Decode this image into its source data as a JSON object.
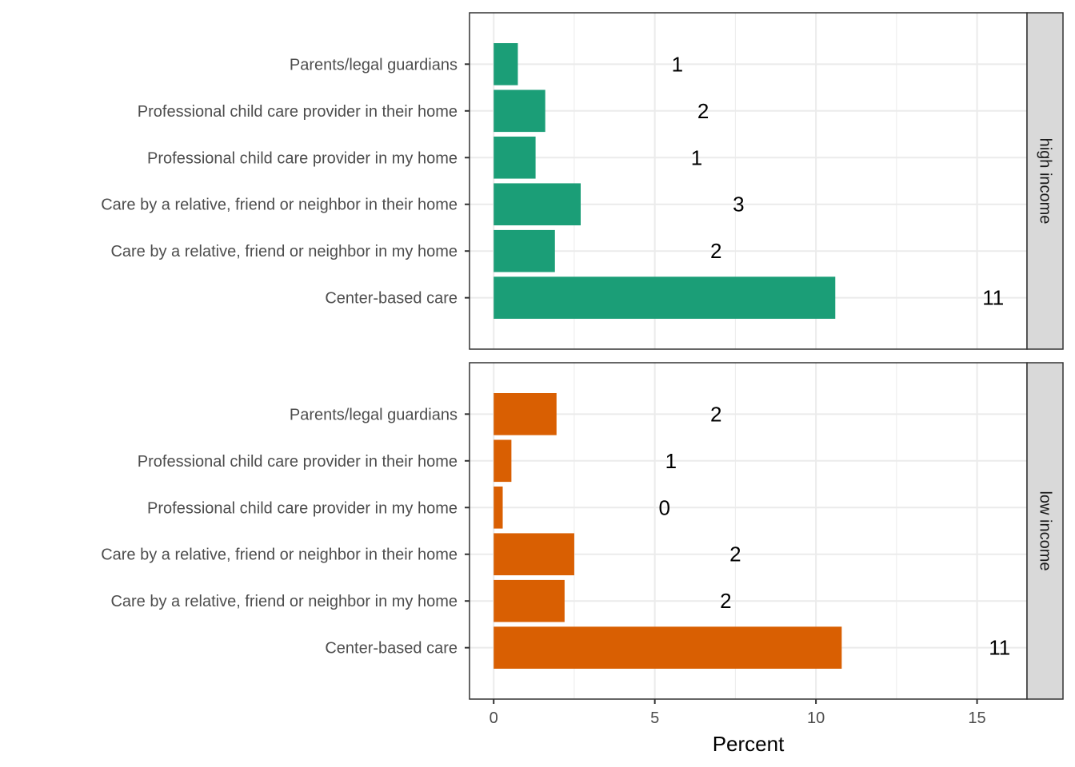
{
  "chart_data": {
    "type": "bar",
    "orientation": "horizontal",
    "categories": [
      "Parents/legal guardians",
      "Professional child care provider in their home",
      "Professional child care provider in my home",
      "Care by a relative, friend or neighbor in their home",
      "Care by a relative, friend or neighbor in my home",
      "Center-based care"
    ],
    "panels": [
      {
        "name": "high income",
        "color": "#1b9e77",
        "values": [
          0.75,
          1.6,
          1.3,
          2.7,
          1.9,
          10.6
        ],
        "labels": [
          "1",
          "2",
          "1",
          "3",
          "2",
          "11"
        ],
        "label_x": [
          5.7,
          6.5,
          6.3,
          7.6,
          6.9,
          15.5
        ]
      },
      {
        "name": "low income",
        "color": "#d95f02",
        "values": [
          1.95,
          0.55,
          0.28,
          2.5,
          2.2,
          10.8
        ],
        "labels": [
          "2",
          "1",
          "0",
          "2",
          "2",
          "11"
        ],
        "label_x": [
          6.9,
          5.5,
          5.3,
          7.5,
          7.2,
          15.7
        ]
      }
    ],
    "xlabel": "Percent",
    "ylabel": "",
    "xlim": [
      -0.75,
      16.55
    ],
    "x_ticks": [
      0,
      5,
      10,
      15
    ],
    "grid": true
  }
}
